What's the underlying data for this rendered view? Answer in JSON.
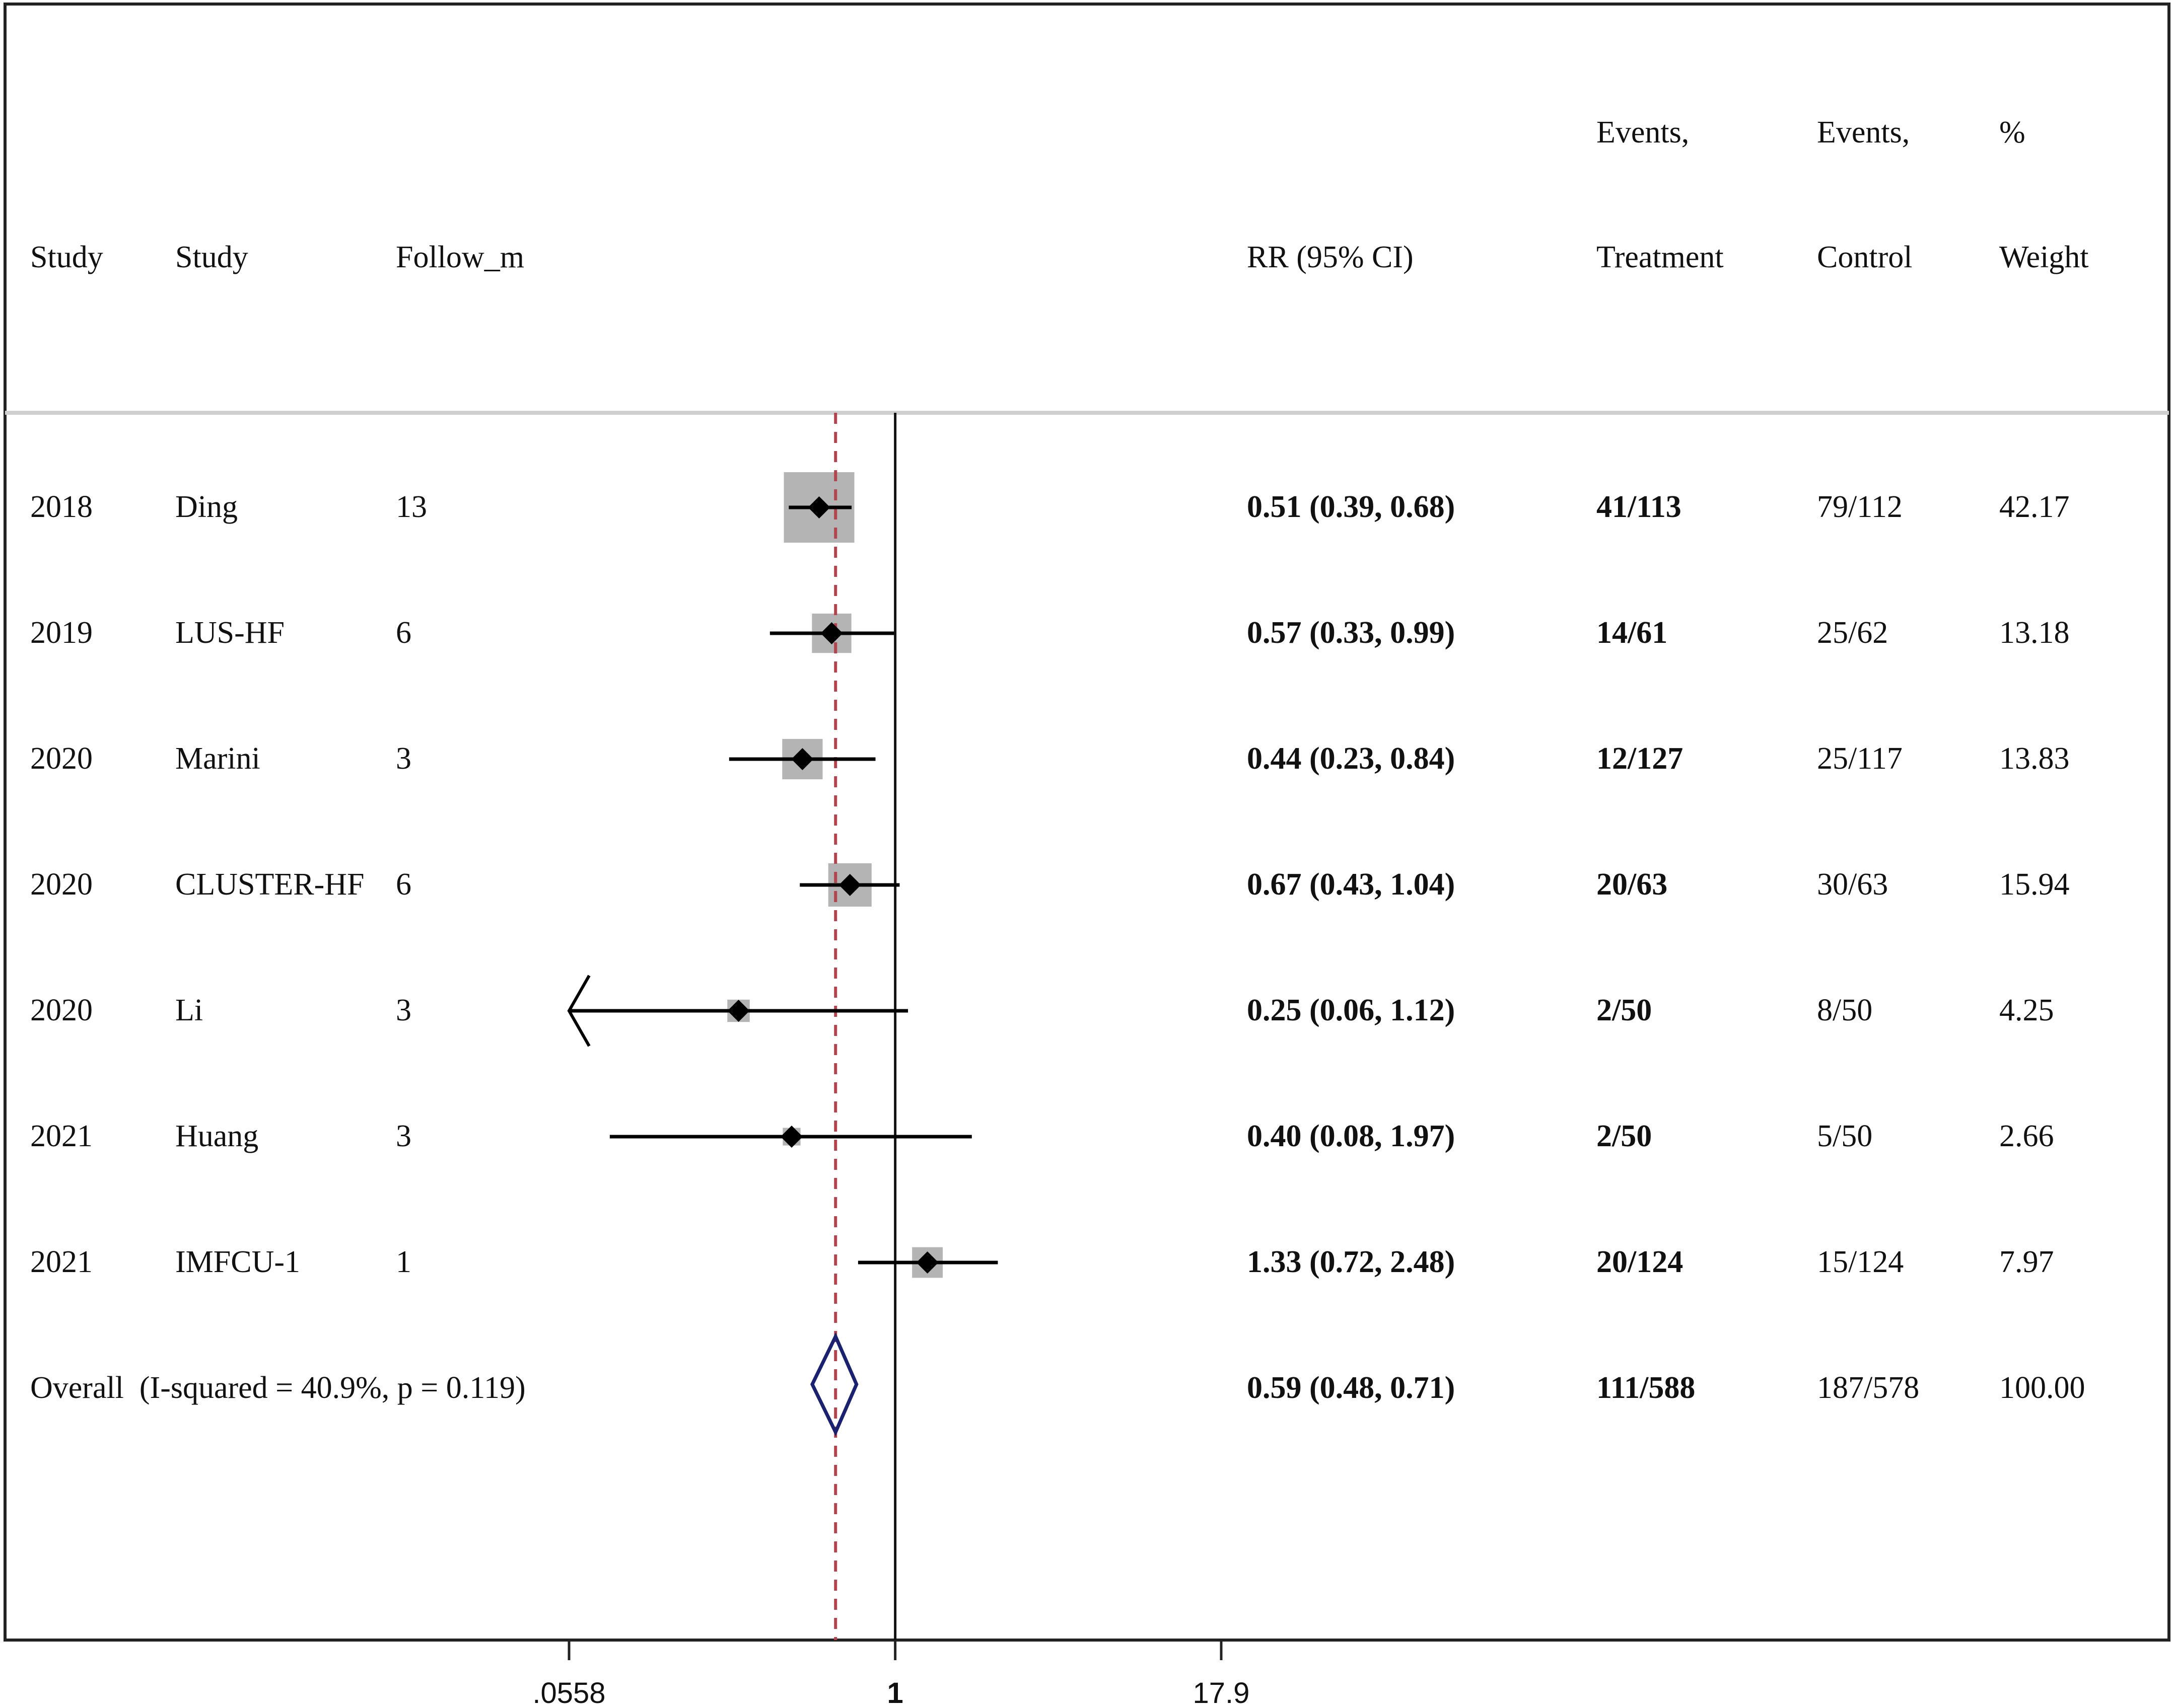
{
  "header": {
    "col_year": "Study",
    "col_study": "Study",
    "col_follow": "Follow_m",
    "col_rr": "RR (95% CI)",
    "col_treat_line1": "Events,",
    "col_treat_line2": "Treatment",
    "col_ctrl_line1": "Events,",
    "col_ctrl_line2": "Control",
    "col_weight_line1": "%",
    "col_weight_line2": "Weight"
  },
  "rows": [
    {
      "year": "2018",
      "study": "Ding",
      "follow": "13",
      "rr_text": "0.51 (0.39, 0.68)",
      "treatment": "41/113",
      "control": "79/112",
      "weight": "42.17"
    },
    {
      "year": "2019",
      "study": "LUS-HF",
      "follow": "6",
      "rr_text": "0.57 (0.33, 0.99)",
      "treatment": "14/61",
      "control": "25/62",
      "weight": "13.18"
    },
    {
      "year": "2020",
      "study": "Marini",
      "follow": "3",
      "rr_text": "0.44 (0.23, 0.84)",
      "treatment": "12/127",
      "control": "25/117",
      "weight": "13.83"
    },
    {
      "year": "2020",
      "study": "CLUSTER-HF",
      "follow": "6",
      "rr_text": "0.67 (0.43, 1.04)",
      "treatment": "20/63",
      "control": "30/63",
      "weight": "15.94"
    },
    {
      "year": "2020",
      "study": "Li",
      "follow": "3",
      "rr_text": "0.25 (0.06, 1.12)",
      "treatment": "2/50",
      "control": "8/50",
      "weight": "4.25"
    },
    {
      "year": "2021",
      "study": "Huang",
      "follow": "3",
      "rr_text": "0.40 (0.08, 1.97)",
      "treatment": "2/50",
      "control": "5/50",
      "weight": "2.66"
    },
    {
      "year": "2021",
      "study": "IMFCU-1",
      "follow": "1",
      "rr_text": "1.33 (0.72, 2.48)",
      "treatment": "20/124",
      "control": "15/124",
      "weight": "7.97"
    }
  ],
  "overall": {
    "label": "Overall  (I-squared = 40.9%, p = 0.119)",
    "rr_text": "0.59 (0.48, 0.71)",
    "treatment": "111/588",
    "control": "187/578",
    "weight": "100.00"
  },
  "axis": {
    "tick_labels": [
      ".0558",
      "1",
      "17.9"
    ]
  },
  "chart_data": {
    "type": "forest",
    "scale": "log",
    "xlim": [
      0.0558,
      17.9
    ],
    "ticks": [
      0.0558,
      1,
      17.9
    ],
    "reference_line": 1,
    "pooled_line": 0.59,
    "points": [
      {
        "rr": 0.51,
        "lo": 0.39,
        "hi": 0.68,
        "weight": 42.17
      },
      {
        "rr": 0.57,
        "lo": 0.33,
        "hi": 0.99,
        "weight": 13.18
      },
      {
        "rr": 0.44,
        "lo": 0.23,
        "hi": 0.84,
        "weight": 13.83
      },
      {
        "rr": 0.67,
        "lo": 0.43,
        "hi": 1.04,
        "weight": 15.94
      },
      {
        "rr": 0.25,
        "lo": 0.06,
        "hi": 1.12,
        "weight": 4.25,
        "lower_truncated": true
      },
      {
        "rr": 0.4,
        "lo": 0.08,
        "hi": 1.97,
        "weight": 2.66
      },
      {
        "rr": 1.33,
        "lo": 0.72,
        "hi": 2.48,
        "weight": 7.97
      }
    ],
    "overall": {
      "rr": 0.59,
      "lo": 0.48,
      "hi": 0.71
    },
    "colors": {
      "marker": "#000000",
      "box": "#b4b4b4",
      "pooled_line": "#b0454d",
      "diamond": "#1a2270",
      "frame": "#222222",
      "divider": "#cfcfcf"
    }
  }
}
